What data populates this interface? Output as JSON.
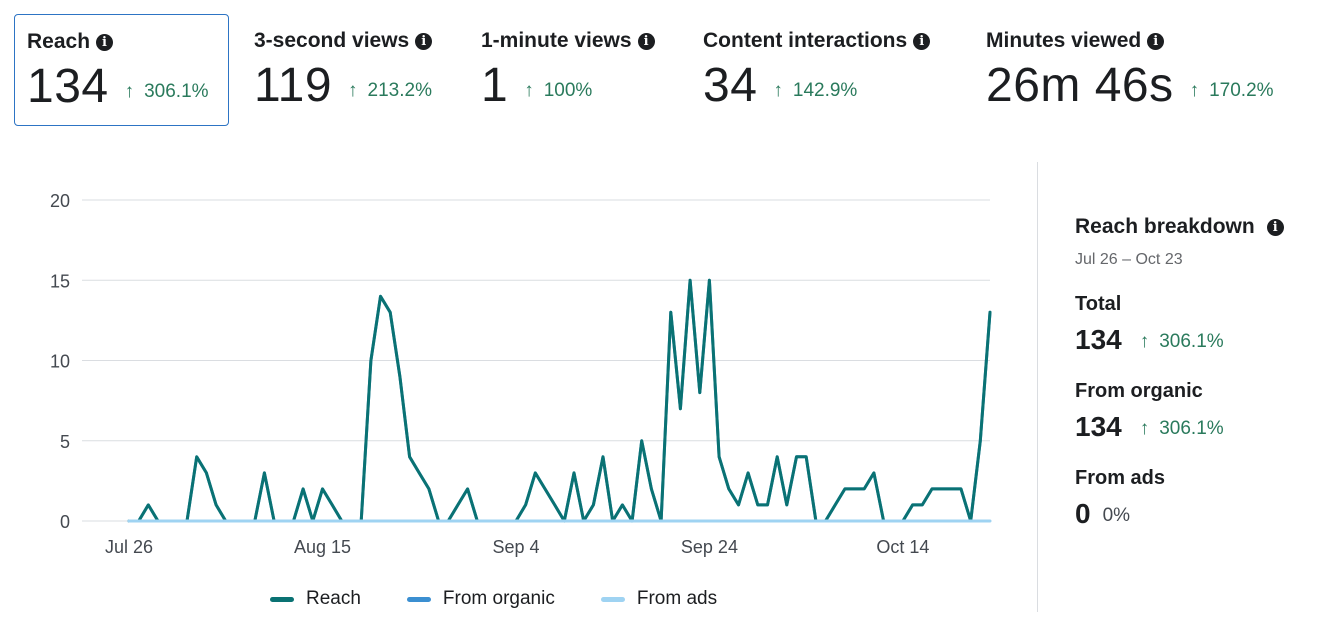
{
  "metrics": [
    {
      "label": "Reach",
      "value": "134",
      "delta": "306.1%"
    },
    {
      "label": "3-second views",
      "value": "119",
      "delta": "213.2%"
    },
    {
      "label": "1-minute views",
      "value": "1",
      "delta": "100%"
    },
    {
      "label": "Content interactions",
      "value": "34",
      "delta": "142.9%"
    },
    {
      "label": "Minutes viewed",
      "value": "26m 46s",
      "delta": "170.2%"
    }
  ],
  "icons": {
    "info": "info-icon",
    "up": "arrow-up-icon",
    "up_glyph": "↑",
    "info_glyph": "i"
  },
  "colors": {
    "reach": "#0a7273",
    "organic": "#3b8fd1",
    "ads": "#9fd3f2",
    "positive": "#2a7a5c",
    "grid": "#dadde1",
    "accent_border": "#2d74c4"
  },
  "chart_data": {
    "type": "line",
    "title": "",
    "xlabel": "",
    "ylabel": "",
    "ylim": [
      0,
      20
    ],
    "yticks": [
      "0",
      "5",
      "10",
      "15",
      "20"
    ],
    "xtick_labels": [
      {
        "day": 1,
        "label": "Jul 26"
      },
      {
        "day": 21,
        "label": "Aug 15"
      },
      {
        "day": 41,
        "label": "Sep 4"
      },
      {
        "day": 61,
        "label": "Sep 24"
      },
      {
        "day": 81,
        "label": "Oct 14"
      }
    ],
    "x_start_day": 1,
    "x_end_day": 90,
    "series": [
      {
        "name": "Reach",
        "values": [
          0,
          0,
          1,
          0,
          0,
          0,
          0,
          4,
          3,
          1,
          0,
          0,
          0,
          0,
          3,
          0,
          0,
          0,
          2,
          0,
          2,
          1,
          0,
          0,
          0,
          10,
          14,
          13,
          9,
          4,
          3,
          2,
          0,
          0,
          1,
          2,
          0,
          0,
          0,
          0,
          0,
          1,
          3,
          2,
          1,
          0,
          3,
          0,
          1,
          4,
          0,
          1,
          0,
          5,
          2,
          0,
          13,
          7,
          15,
          8,
          15,
          4,
          2,
          1,
          3,
          1,
          1,
          4,
          1,
          4,
          4,
          0,
          0,
          1,
          2,
          2,
          2,
          3,
          0,
          0,
          0,
          1,
          1,
          2,
          2,
          2,
          2,
          0,
          5,
          13
        ]
      },
      {
        "name": "From organic",
        "values": [
          0,
          0,
          1,
          0,
          0,
          0,
          0,
          4,
          3,
          1,
          0,
          0,
          0,
          0,
          3,
          0,
          0,
          0,
          2,
          0,
          2,
          1,
          0,
          0,
          0,
          10,
          14,
          13,
          9,
          4,
          3,
          2,
          0,
          0,
          1,
          2,
          0,
          0,
          0,
          0,
          0,
          1,
          3,
          2,
          1,
          0,
          3,
          0,
          1,
          4,
          0,
          1,
          0,
          5,
          2,
          0,
          13,
          7,
          15,
          8,
          15,
          4,
          2,
          1,
          3,
          1,
          1,
          4,
          1,
          4,
          4,
          0,
          0,
          1,
          2,
          2,
          2,
          3,
          0,
          0,
          0,
          1,
          1,
          2,
          2,
          2,
          2,
          0,
          5,
          13
        ]
      },
      {
        "name": "From ads",
        "values": [
          0,
          0,
          0,
          0,
          0,
          0,
          0,
          0,
          0,
          0,
          0,
          0,
          0,
          0,
          0,
          0,
          0,
          0,
          0,
          0,
          0,
          0,
          0,
          0,
          0,
          0,
          0,
          0,
          0,
          0,
          0,
          0,
          0,
          0,
          0,
          0,
          0,
          0,
          0,
          0,
          0,
          0,
          0,
          0,
          0,
          0,
          0,
          0,
          0,
          0,
          0,
          0,
          0,
          0,
          0,
          0,
          0,
          0,
          0,
          0,
          0,
          0,
          0,
          0,
          0,
          0,
          0,
          0,
          0,
          0,
          0,
          0,
          0,
          0,
          0,
          0,
          0,
          0,
          0,
          0,
          0,
          0,
          0,
          0,
          0,
          0,
          0,
          0,
          0,
          0
        ]
      }
    ],
    "legend": [
      "Reach",
      "From organic",
      "From ads"
    ]
  },
  "breakdown": {
    "title": "Reach breakdown",
    "range": "Jul 26 – Oct 23",
    "total_label": "Total",
    "total_value": "134",
    "total_delta": "306.1%",
    "organic_label": "From organic",
    "organic_value": "134",
    "organic_delta": "306.1%",
    "ads_label": "From ads",
    "ads_value": "0",
    "ads_delta": "0%"
  }
}
